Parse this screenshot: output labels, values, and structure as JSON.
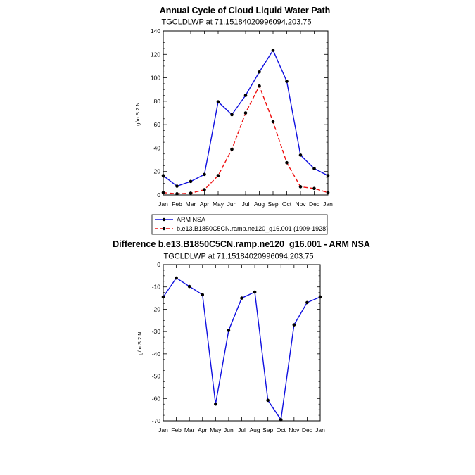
{
  "chart_data": [
    {
      "type": "line",
      "title": "Annual Cycle of Cloud Liquid Water Path",
      "subtitle": "TGCLDLWP at 71.15184020996094,203.75",
      "ylabel": "g/m:S:2:N:",
      "xlabel": "",
      "categories": [
        "Jan",
        "Feb",
        "Mar",
        "Apr",
        "May",
        "Jun",
        "Jul",
        "Aug",
        "Sep",
        "Oct",
        "Nov",
        "Dec",
        "Jan"
      ],
      "ylim": [
        0,
        140
      ],
      "yticks": [
        0,
        20,
        40,
        60,
        80,
        100,
        120,
        140
      ],
      "ytick_labels": [
        "0",
        "20",
        "40",
        "60",
        "80",
        "100",
        "120",
        "140"
      ],
      "legend_position": "bottom",
      "series": [
        {
          "name": "ARM NSA",
          "color": "#1010e0",
          "dash": "solid",
          "values": [
            16.5,
            7.5,
            11.5,
            17.5,
            79.5,
            68.5,
            85,
            105,
            123.5,
            97,
            34,
            22.5,
            16.5
          ]
        },
        {
          "name": "b.e13.B1850C5CN.ramp.ne120_g16.001 (1909-1928)",
          "color": "#ee1111",
          "dash": "dashed",
          "values": [
            2,
            1,
            1.5,
            4.5,
            16.5,
            39,
            70,
            93,
            62.5,
            27.5,
            7,
            5.5,
            2
          ]
        }
      ]
    },
    {
      "type": "line",
      "title": "Difference b.e13.B1850C5CN.ramp.ne120_g16.001 - ARM NSA",
      "subtitle": "TGCLDLWP at 71.15184020996094,203.75",
      "ylabel": "g/m:S:2:N:",
      "xlabel": "",
      "categories": [
        "Jan",
        "Feb",
        "Mar",
        "Apr",
        "May",
        "Jun",
        "Jul",
        "Aug",
        "Sep",
        "Oct",
        "Nov",
        "Dec",
        "Jan"
      ],
      "ylim": [
        -70,
        0
      ],
      "yticks": [
        -70,
        -60,
        -50,
        -40,
        -30,
        -20,
        -10,
        0
      ],
      "ytick_labels": [
        "-70",
        "-60",
        "-50",
        "-40",
        "-30",
        "-20",
        "-10",
        "0"
      ],
      "series": [
        {
          "color": "#1010e0",
          "dash": "solid",
          "values": [
            -14.5,
            -6,
            -9.8,
            -13.5,
            -62.5,
            -29.5,
            -15,
            -12.3,
            -60.8,
            -69.5,
            -27,
            -17,
            -14.5
          ]
        }
      ]
    }
  ]
}
